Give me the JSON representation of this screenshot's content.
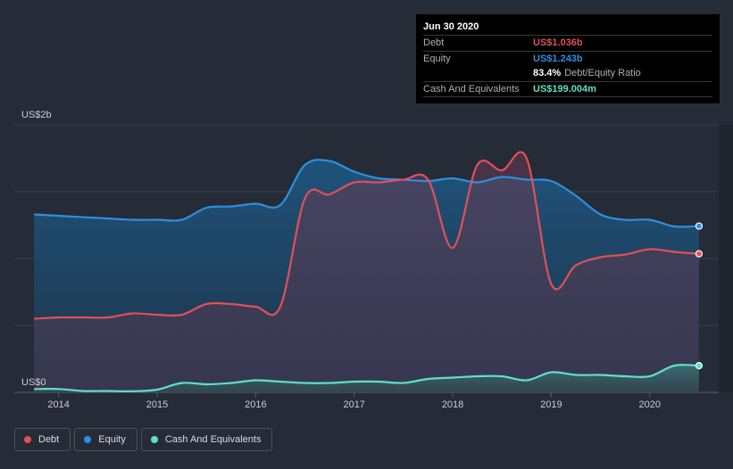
{
  "chart_data": {
    "type": "area",
    "title": "",
    "ylabel": "",
    "ylim": [
      0,
      2.0
    ],
    "y_unit": "US$ billions",
    "y_ticks": [
      {
        "value": 2.0,
        "label": "US$2b"
      },
      {
        "value": 0,
        "label": "US$0"
      }
    ],
    "x_ticks": [
      {
        "value": 2014,
        "label": "2014"
      },
      {
        "value": 2015,
        "label": "2015"
      },
      {
        "value": 2016,
        "label": "2016"
      },
      {
        "value": 2017,
        "label": "2017"
      },
      {
        "value": 2018,
        "label": "2018"
      },
      {
        "value": 2019,
        "label": "2019"
      },
      {
        "value": 2020,
        "label": "2020"
      }
    ],
    "xlim": [
      2013.55,
      2020.7
    ],
    "series": [
      {
        "name": "Equity",
        "color": "#2d8fe0",
        "x": [
          2013.75,
          2014.0,
          2014.5,
          2014.75,
          2015.0,
          2015.25,
          2015.5,
          2015.75,
          2016.0,
          2016.25,
          2016.5,
          2016.75,
          2017.0,
          2017.25,
          2017.5,
          2017.75,
          2018.0,
          2018.25,
          2018.5,
          2018.75,
          2019.0,
          2019.25,
          2019.5,
          2019.75,
          2020.0,
          2020.25,
          2020.5
        ],
        "y": [
          1.33,
          1.32,
          1.3,
          1.29,
          1.29,
          1.29,
          1.38,
          1.39,
          1.41,
          1.4,
          1.7,
          1.73,
          1.65,
          1.6,
          1.59,
          1.58,
          1.6,
          1.57,
          1.61,
          1.59,
          1.58,
          1.47,
          1.33,
          1.29,
          1.29,
          1.24,
          1.243
        ]
      },
      {
        "name": "Debt",
        "color": "#e0505a",
        "x": [
          2013.75,
          2014.0,
          2014.25,
          2014.5,
          2014.75,
          2015.0,
          2015.25,
          2015.5,
          2015.75,
          2016.0,
          2016.25,
          2016.5,
          2016.75,
          2017.0,
          2017.25,
          2017.5,
          2017.75,
          2018.0,
          2018.25,
          2018.5,
          2018.75,
          2019.0,
          2019.25,
          2019.5,
          2019.75,
          2020.0,
          2020.25,
          2020.5
        ],
        "y": [
          0.55,
          0.56,
          0.56,
          0.56,
          0.59,
          0.58,
          0.58,
          0.66,
          0.66,
          0.64,
          0.64,
          1.45,
          1.48,
          1.57,
          1.57,
          1.59,
          1.59,
          1.08,
          1.7,
          1.66,
          1.75,
          0.81,
          0.95,
          1.01,
          1.03,
          1.07,
          1.05,
          1.036
        ]
      },
      {
        "name": "Cash And Equivalents",
        "color": "#5ee0c8",
        "x": [
          2013.75,
          2014.0,
          2014.25,
          2014.5,
          2014.75,
          2015.0,
          2015.25,
          2015.5,
          2015.75,
          2016.0,
          2016.25,
          2016.5,
          2016.75,
          2017.0,
          2017.25,
          2017.5,
          2017.75,
          2018.0,
          2018.25,
          2018.5,
          2018.75,
          2019.0,
          2019.25,
          2019.5,
          2019.75,
          2020.0,
          2020.25,
          2020.5
        ],
        "y": [
          0.025,
          0.025,
          0.01,
          0.01,
          0.008,
          0.02,
          0.07,
          0.06,
          0.07,
          0.09,
          0.08,
          0.07,
          0.07,
          0.08,
          0.08,
          0.07,
          0.1,
          0.11,
          0.12,
          0.12,
          0.09,
          0.15,
          0.13,
          0.13,
          0.12,
          0.12,
          0.2,
          0.199
        ]
      }
    ]
  },
  "tooltip": {
    "date": "Jun 30 2020",
    "rows": [
      {
        "label": "Debt",
        "value": "US$1.036b",
        "color": "#e0505a"
      },
      {
        "label": "Equity",
        "value": "US$1.243b",
        "color": "#2d8fe0"
      },
      {
        "label": "",
        "value": "83.4%",
        "extra": "Debt/Equity Ratio",
        "color": "#ffffff"
      },
      {
        "label": "Cash And Equivalents",
        "value": "US$199.004m",
        "color": "#5ee0c8"
      }
    ]
  },
  "legend": [
    {
      "label": "Debt",
      "color": "#e0505a"
    },
    {
      "label": "Equity",
      "color": "#2d8fe0"
    },
    {
      "label": "Cash And Equivalents",
      "color": "#5ee0c8"
    }
  ]
}
